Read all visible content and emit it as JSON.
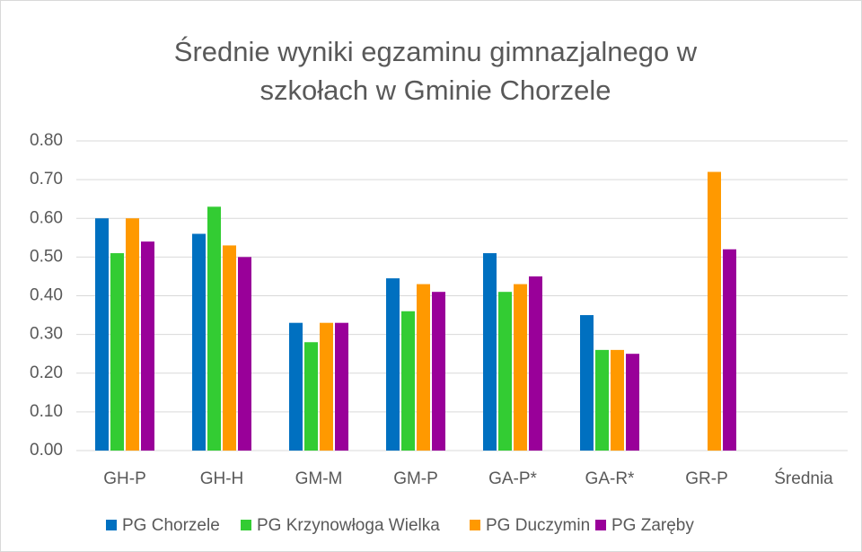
{
  "chart_data": {
    "type": "bar",
    "title": [
      "Średnie wyniki egzaminu gimnazjalnego w",
      "szkołach w Gminie Chorzele"
    ],
    "categories": [
      "GH-P",
      "GH-H",
      "GM-M",
      "GM-P",
      "GA-P*",
      "GA-R*",
      "GR-P",
      "Średnia"
    ],
    "series": [
      {
        "name": "PG Chorzele",
        "color": "#0070c0",
        "values": [
          0.6,
          0.56,
          0.33,
          0.445,
          0.51,
          0.35,
          null,
          null
        ]
      },
      {
        "name": "PG Krzynowłoga Wielka",
        "color": "#33cc33",
        "values": [
          0.51,
          0.63,
          0.28,
          0.36,
          0.41,
          0.26,
          null,
          null
        ]
      },
      {
        "name": "PG Duczymin",
        "color": "#ff9900",
        "values": [
          0.6,
          0.53,
          0.33,
          0.43,
          0.43,
          0.26,
          0.72,
          null
        ]
      },
      {
        "name": "PG Zaręby",
        "color": "#990099",
        "values": [
          0.54,
          0.5,
          0.33,
          0.41,
          0.45,
          0.25,
          0.52,
          null
        ]
      }
    ],
    "ylim": [
      0,
      0.8
    ],
    "yticks": [
      {
        "value": 0,
        "label": "0.00"
      },
      {
        "value": 0.1,
        "label": "0.10"
      },
      {
        "value": 0.2,
        "label": "0.20"
      },
      {
        "value": 0.3,
        "label": "0.30"
      },
      {
        "value": 0.4,
        "label": "0.40"
      },
      {
        "value": 0.5,
        "label": "0.50"
      },
      {
        "value": 0.6,
        "label": "0.60"
      },
      {
        "value": 0.7,
        "label": "0.70"
      },
      {
        "value": 0.8,
        "label": "0.80"
      }
    ],
    "grid": true,
    "legend": "bottom"
  }
}
